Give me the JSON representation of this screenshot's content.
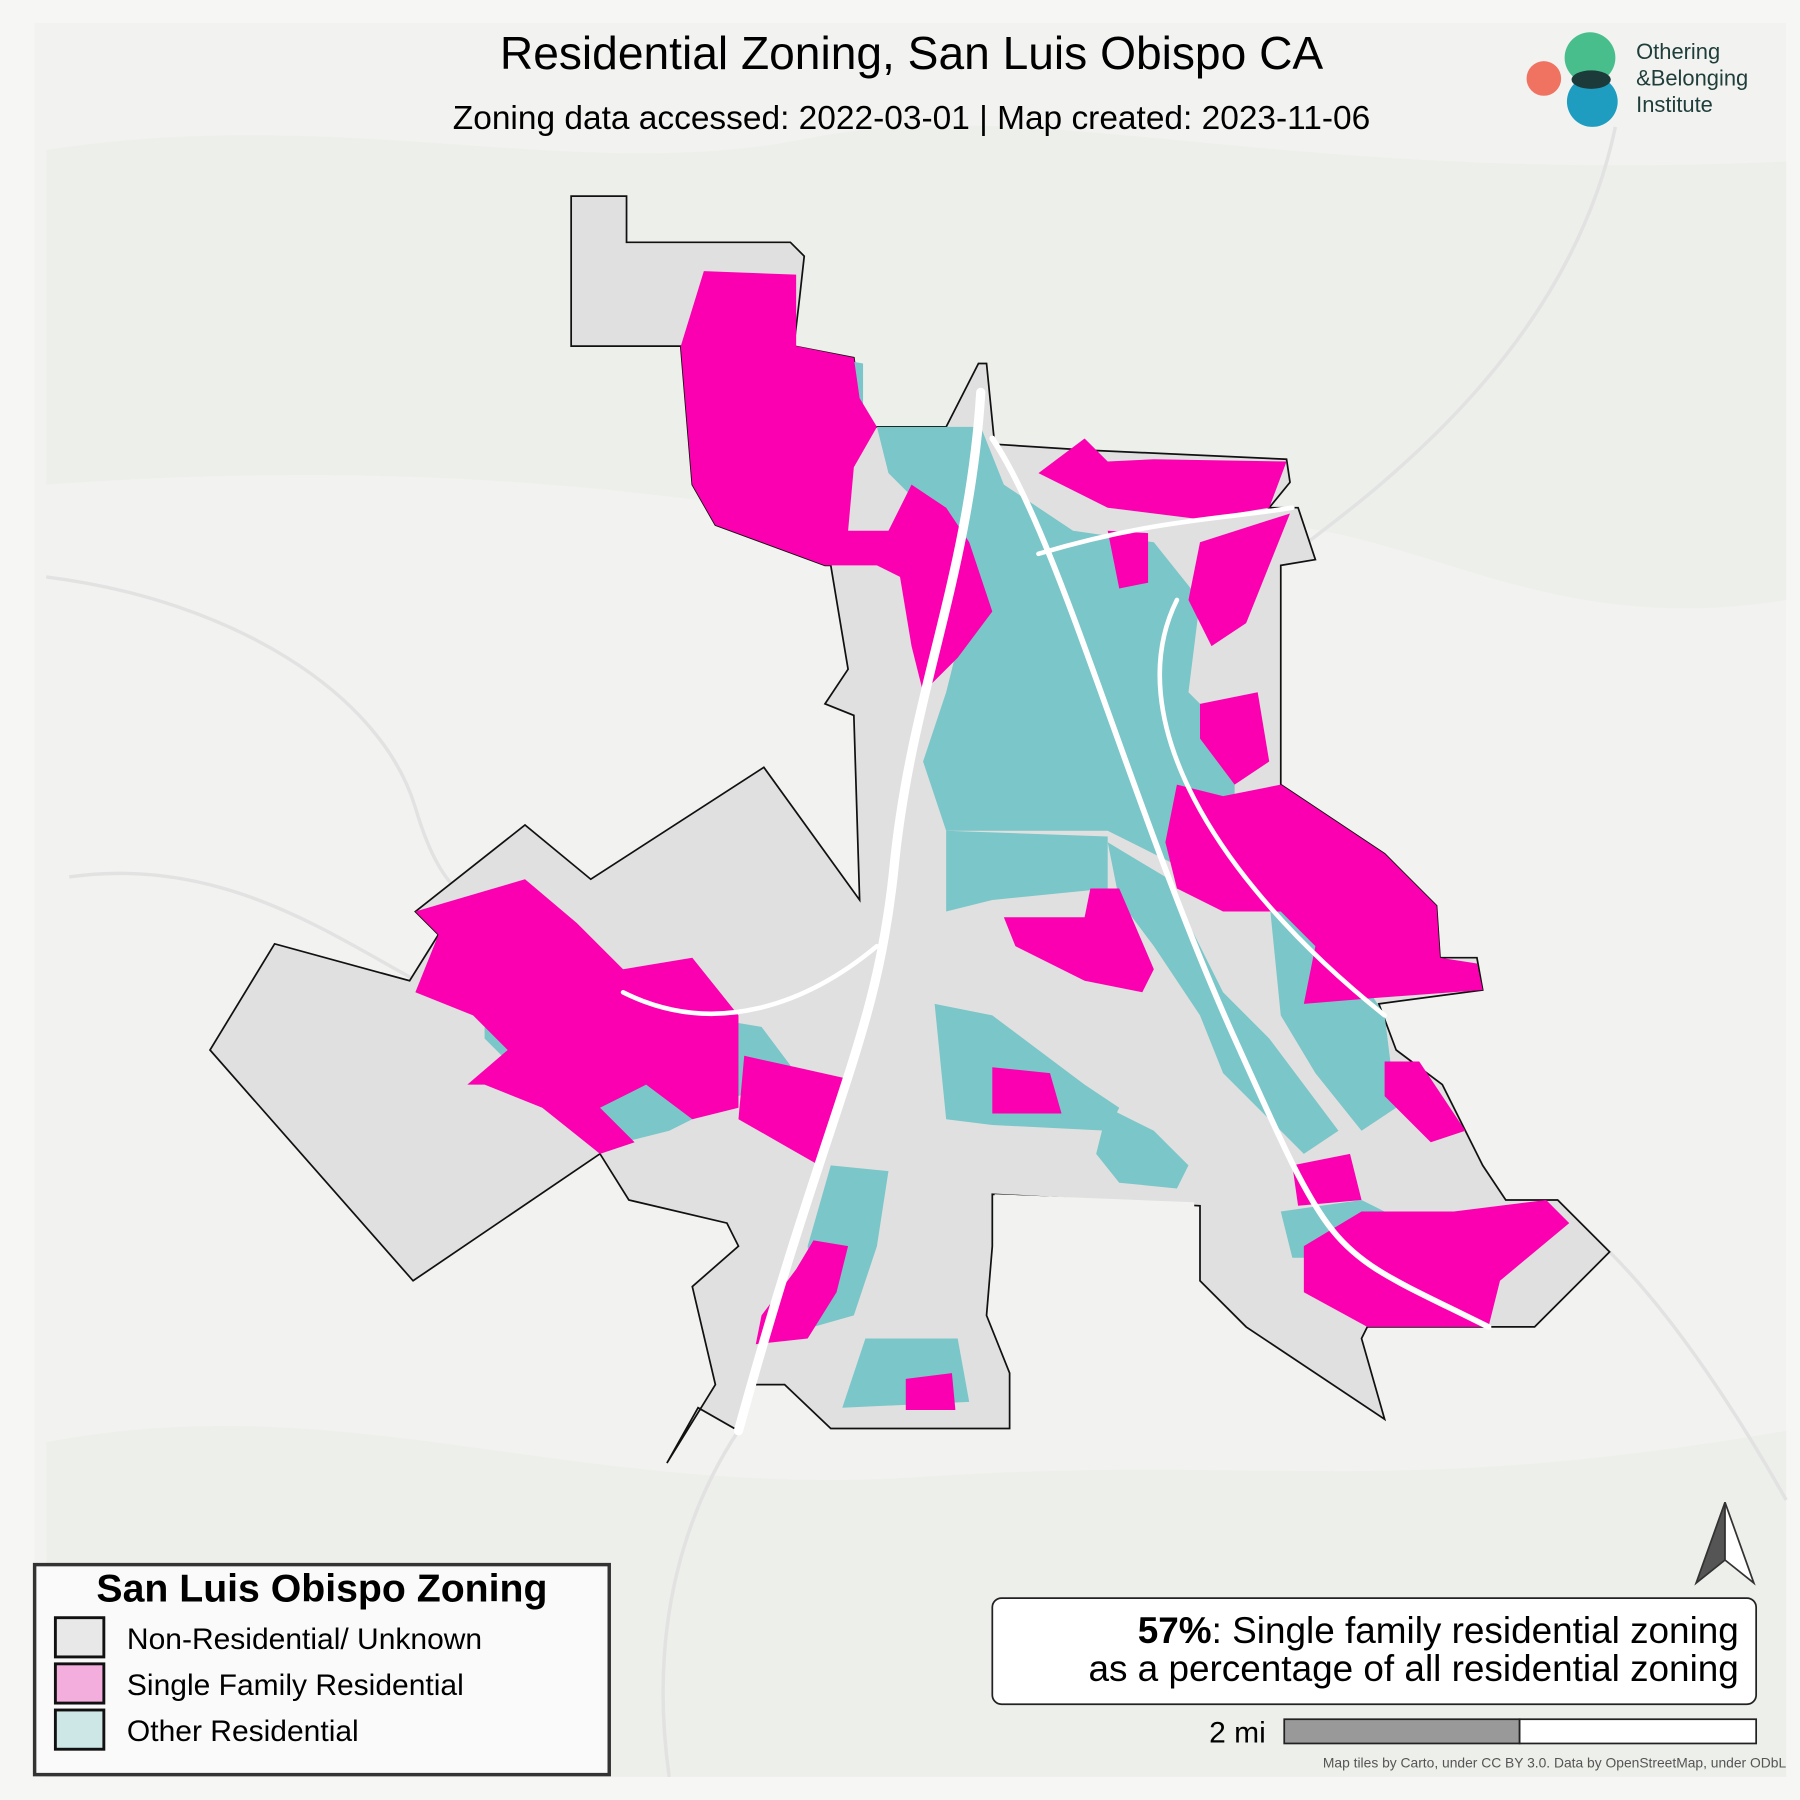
{
  "header": {
    "title": "Residential Zoning, San Luis Obispo CA",
    "subtitle": "Zoning data accessed: 2022-03-01 | Map created: 2023-11-06"
  },
  "logo": {
    "lines": [
      "Othering",
      "&Belonging",
      "Institute"
    ]
  },
  "legend": {
    "title": "San Luis Obispo Zoning",
    "items": [
      {
        "label": "Non-Residential/ Unknown",
        "swatch": "#e8e8e8",
        "map_color": "#e0e0e0"
      },
      {
        "label": "Single Family Residential",
        "swatch": "#f4aedd",
        "map_color": "#fb00b0"
      },
      {
        "label": "Other Residential",
        "swatch": "#cde6e6",
        "map_color": "#7bc6c8"
      }
    ]
  },
  "summary": {
    "percent": "57%",
    "line1": ": Single family residential zoning",
    "line2": "as a percentage of all residential zoning"
  },
  "scale_bar": {
    "label": "2 mi"
  },
  "attribution": "Map tiles by Carto, under CC BY 3.0. Data by OpenStreetMap, under ODbL"
}
